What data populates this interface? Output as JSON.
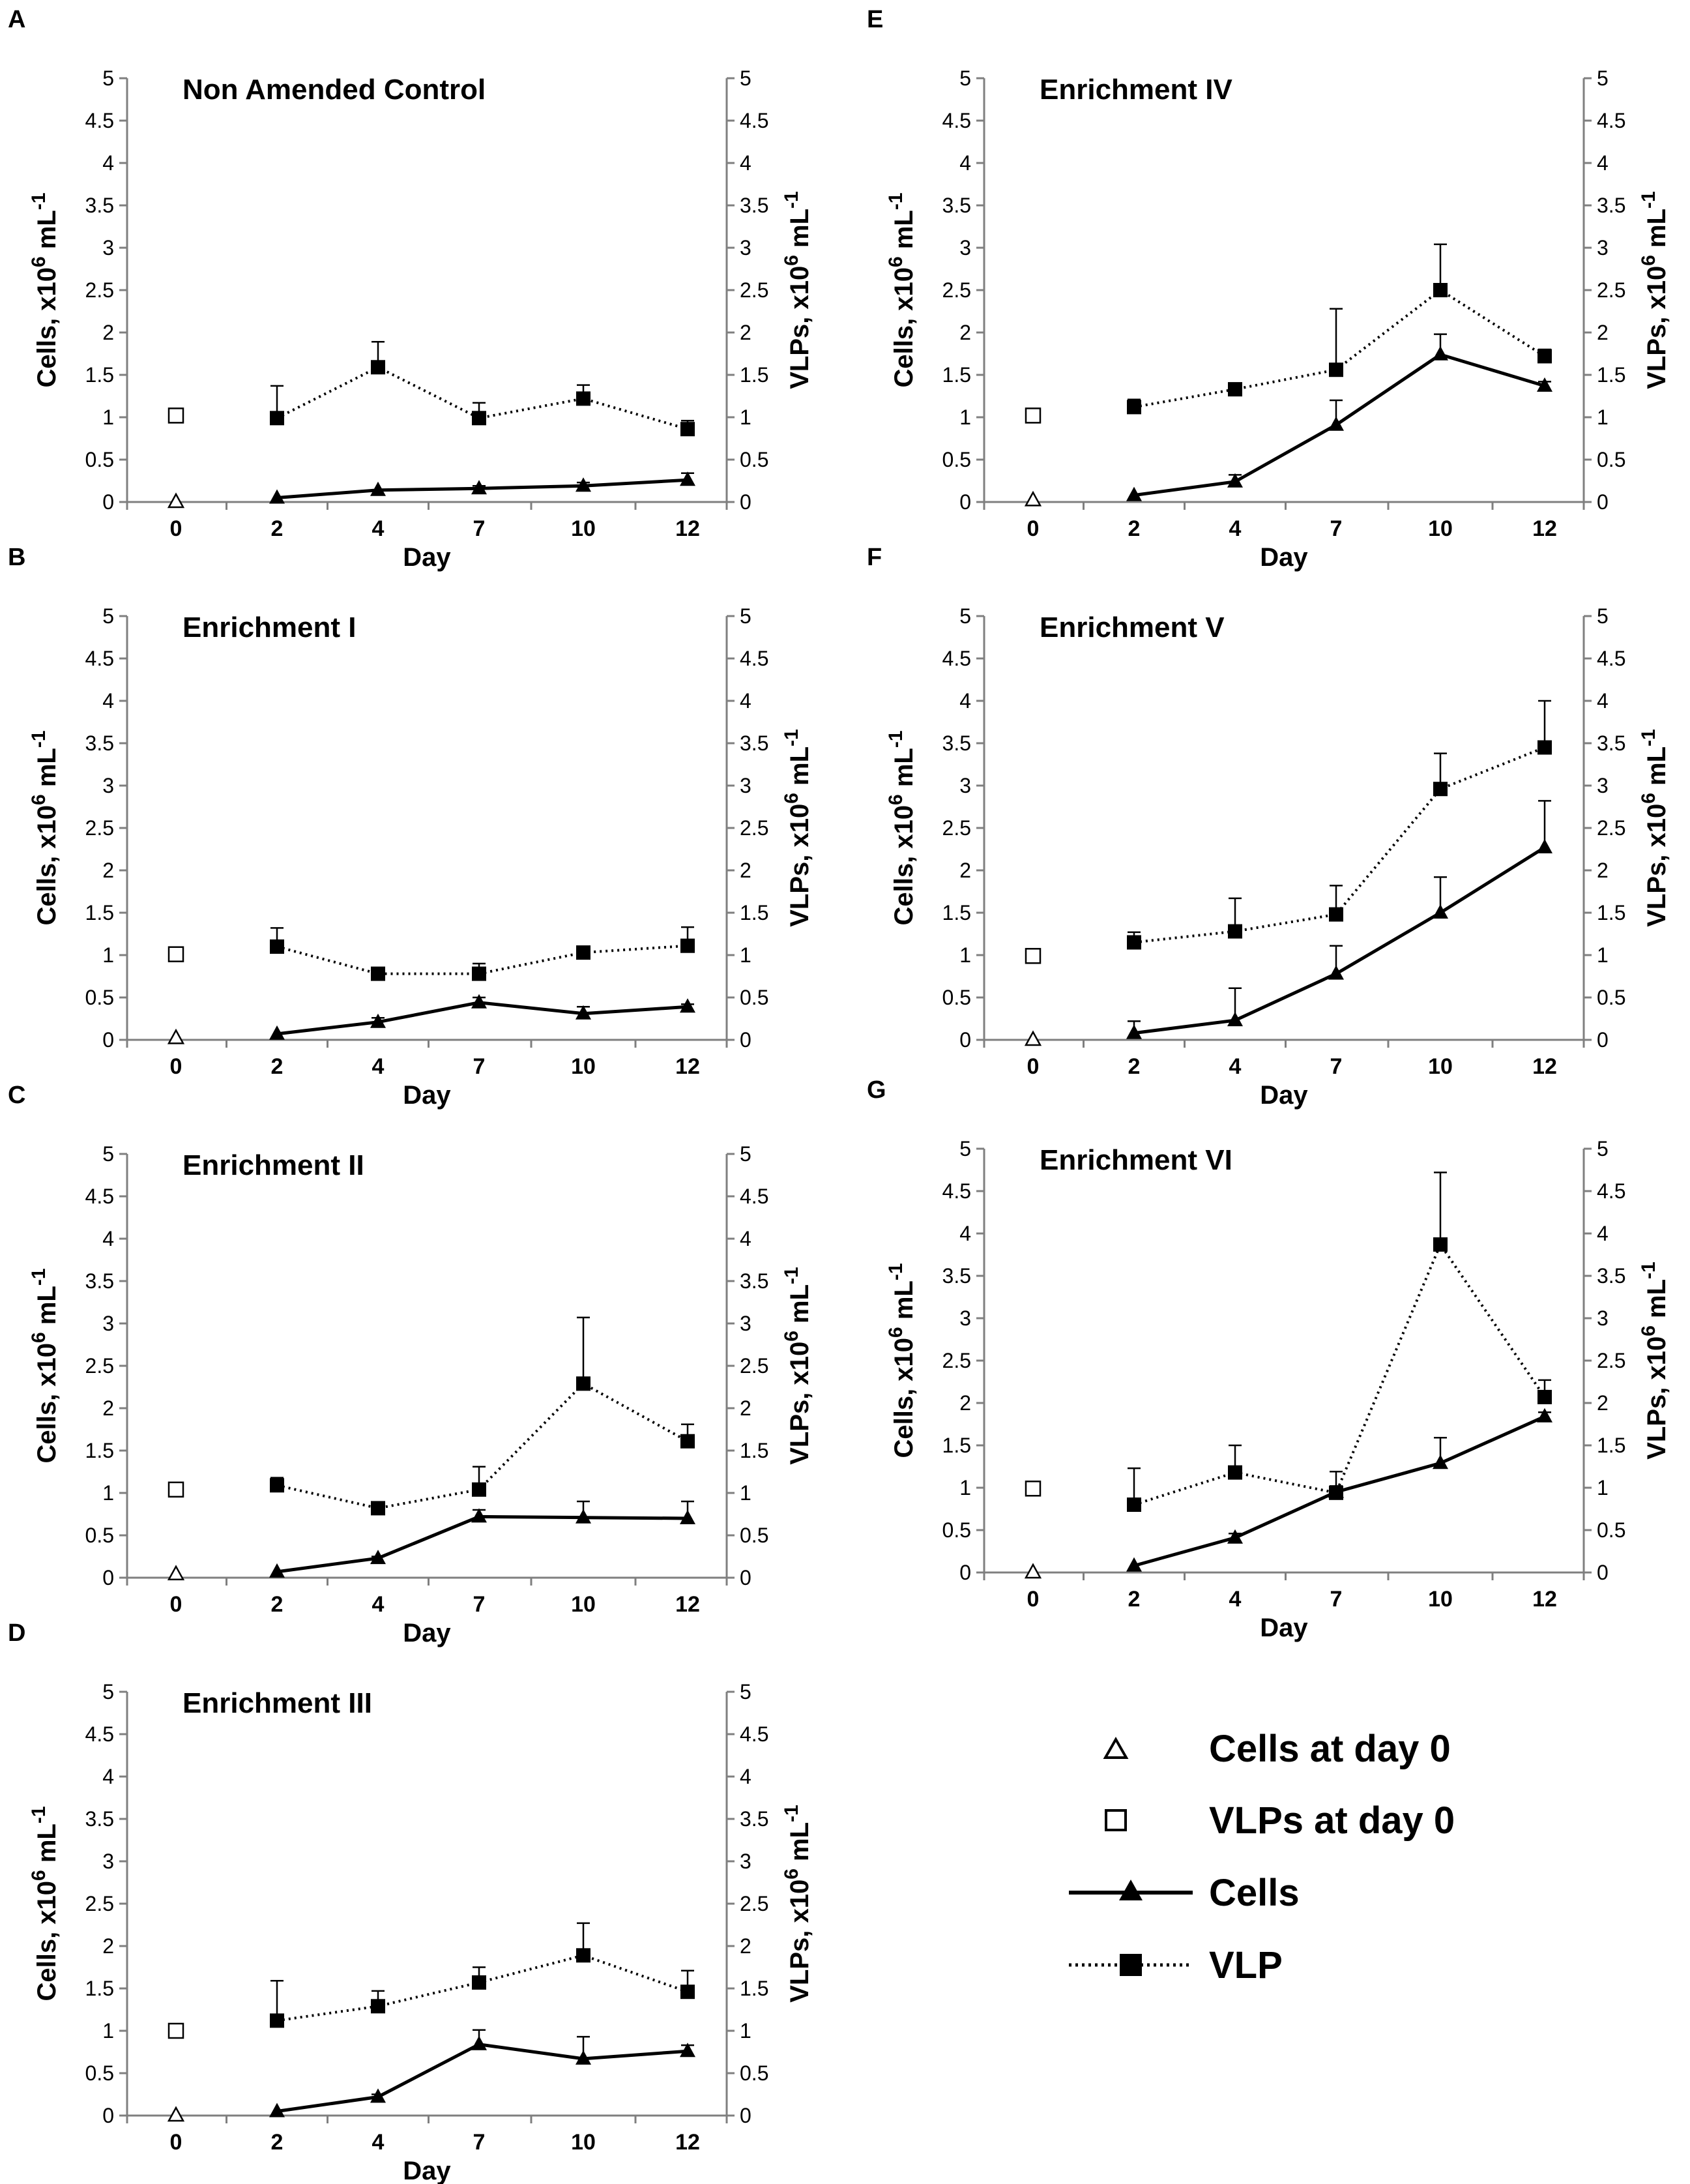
{
  "figure": {
    "panels_order": [
      "A",
      "B",
      "C",
      "D",
      "E",
      "F",
      "G"
    ],
    "legend": {
      "items": [
        {
          "label": "Cells at day 0",
          "marker": "open-triangle",
          "line": "none"
        },
        {
          "label": "VLPs at day 0",
          "marker": "open-square",
          "line": "none"
        },
        {
          "label": "Cells",
          "marker": "filled-triangle",
          "line": "solid"
        },
        {
          "label": "VLP",
          "marker": "filled-square",
          "line": "dotted"
        }
      ]
    }
  },
  "chart_data": [
    {
      "panel": "A",
      "type": "line",
      "title": "Non Amended Control",
      "xlabel": "Day",
      "ylabel_left": "Cells, x10^6 mL^-1",
      "ylabel_right": "VLPs, x10^6 mL^-1",
      "categories": [
        "0",
        "2",
        "4",
        "7",
        "10",
        "12"
      ],
      "ylim": [
        0,
        5
      ],
      "yticks": [
        "0",
        "0.5",
        "1",
        "1.5",
        "2",
        "2.5",
        "3",
        "3.5",
        "4",
        "4.5",
        "5"
      ],
      "day0": {
        "cells": 0.0,
        "vlps": 1.02
      },
      "series": [
        {
          "name": "Cells",
          "x": [
            "2",
            "4",
            "7",
            "10",
            "12"
          ],
          "values": [
            0.05,
            0.14,
            0.16,
            0.19,
            0.26
          ],
          "errors": [
            0,
            0,
            0.03,
            0.04,
            0.08
          ]
        },
        {
          "name": "VLP",
          "x": [
            "2",
            "4",
            "7",
            "10",
            "12"
          ],
          "values": [
            0.99,
            1.59,
            0.99,
            1.22,
            0.86
          ],
          "errors": [
            0.38,
            0.3,
            0.18,
            0.16,
            0.1
          ]
        }
      ]
    },
    {
      "panel": "B",
      "type": "line",
      "title": "Enrichment I",
      "xlabel": "Day",
      "ylabel_left": "Cells, x10^6 mL^-1",
      "ylabel_right": "VLPs, x10^6 mL^-1",
      "categories": [
        "0",
        "2",
        "4",
        "7",
        "10",
        "12"
      ],
      "ylim": [
        0,
        5
      ],
      "yticks": [
        "0",
        "0.5",
        "1",
        "1.5",
        "2",
        "2.5",
        "3",
        "3.5",
        "4",
        "4.5",
        "5"
      ],
      "day0": {
        "cells": 0.02,
        "vlps": 1.01
      },
      "series": [
        {
          "name": "Cells",
          "x": [
            "2",
            "4",
            "7",
            "10",
            "12"
          ],
          "values": [
            0.07,
            0.21,
            0.44,
            0.31,
            0.39
          ],
          "errors": [
            0,
            0.05,
            0.06,
            0.08,
            0.03
          ]
        },
        {
          "name": "VLP",
          "x": [
            "2",
            "4",
            "7",
            "10",
            "12"
          ],
          "values": [
            1.1,
            0.78,
            0.78,
            1.03,
            1.11
          ],
          "errors": [
            0.22,
            0.06,
            0.12,
            0.07,
            0.22
          ]
        }
      ]
    },
    {
      "panel": "C",
      "type": "line",
      "title": "Enrichment II",
      "xlabel": "Day",
      "ylabel_left": "Cells, x10^6 mL^-1",
      "ylabel_right": "VLPs, x10^6 mL^-1",
      "categories": [
        "0",
        "2",
        "4",
        "7",
        "10",
        "12"
      ],
      "ylim": [
        0,
        5
      ],
      "yticks": [
        "0",
        "0.5",
        "1",
        "1.5",
        "2",
        "2.5",
        "3",
        "3.5",
        "4",
        "4.5",
        "5"
      ],
      "day0": {
        "cells": 0.04,
        "vlps": 1.04
      },
      "series": [
        {
          "name": "Cells",
          "x": [
            "2",
            "4",
            "7",
            "10",
            "12"
          ],
          "values": [
            0.07,
            0.23,
            0.72,
            0.71,
            0.7
          ],
          "errors": [
            0,
            0.02,
            0.08,
            0.19,
            0.2
          ]
        },
        {
          "name": "VLP",
          "x": [
            "2",
            "4",
            "7",
            "10",
            "12"
          ],
          "values": [
            1.09,
            0.82,
            1.04,
            2.29,
            1.61
          ],
          "errors": [
            0.09,
            0.03,
            0.27,
            0.78,
            0.2
          ]
        }
      ]
    },
    {
      "panel": "D",
      "type": "line",
      "title": "Enrichment III",
      "xlabel": "Day",
      "ylabel_left": "Cells, x10^6 mL^-1",
      "ylabel_right": "VLPs, x10^6 mL^-1",
      "categories": [
        "0",
        "2",
        "4",
        "7",
        "10",
        "12"
      ],
      "ylim": [
        0,
        5
      ],
      "yticks": [
        "0",
        "0.5",
        "1",
        "1.5",
        "2",
        "2.5",
        "3",
        "3.5",
        "4",
        "4.5",
        "5"
      ],
      "day0": {
        "cells": 0.0,
        "vlps": 1.0
      },
      "series": [
        {
          "name": "Cells",
          "x": [
            "2",
            "4",
            "7",
            "10",
            "12"
          ],
          "values": [
            0.05,
            0.22,
            0.84,
            0.67,
            0.76
          ],
          "errors": [
            0,
            0.03,
            0.17,
            0.26,
            0.07
          ]
        },
        {
          "name": "VLP",
          "x": [
            "2",
            "4",
            "7",
            "10",
            "12"
          ],
          "values": [
            1.12,
            1.29,
            1.57,
            1.89,
            1.46
          ],
          "errors": [
            0.47,
            0.18,
            0.18,
            0.38,
            0.25
          ]
        }
      ]
    },
    {
      "panel": "E",
      "type": "line",
      "title": "Enrichment IV",
      "xlabel": "Day",
      "ylabel_left": "Cells, x10^6 mL^-1",
      "ylabel_right": "VLPs, x10^6 mL^-1",
      "categories": [
        "0",
        "2",
        "4",
        "7",
        "10",
        "12"
      ],
      "ylim": [
        0,
        5
      ],
      "yticks": [
        "0",
        "0.5",
        "1",
        "1.5",
        "2",
        "2.5",
        "3",
        "3.5",
        "4",
        "4.5",
        "5"
      ],
      "day0": {
        "cells": 0.02,
        "vlps": 1.02
      },
      "series": [
        {
          "name": "Cells",
          "x": [
            "2",
            "4",
            "7",
            "10",
            "12"
          ],
          "values": [
            0.08,
            0.24,
            0.91,
            1.74,
            1.37
          ],
          "errors": [
            0,
            0.08,
            0.29,
            0.24,
            0.05
          ]
        },
        {
          "name": "VLP",
          "x": [
            "2",
            "4",
            "7",
            "10",
            "12"
          ],
          "values": [
            1.12,
            1.33,
            1.56,
            2.5,
            1.72
          ],
          "errors": [
            0.09,
            0.05,
            0.72,
            0.54,
            0.08
          ]
        }
      ]
    },
    {
      "panel": "F",
      "type": "line",
      "title": "Enrichment V",
      "xlabel": "Day",
      "ylabel_left": "Cells, x10^6 mL^-1",
      "ylabel_right": "VLPs, x10^6 mL^-1",
      "categories": [
        "0",
        "2",
        "4",
        "7",
        "10",
        "12"
      ],
      "ylim": [
        0,
        5
      ],
      "yticks": [
        "0",
        "0.5",
        "1",
        "1.5",
        "2",
        "2.5",
        "3",
        "3.5",
        "4",
        "4.5",
        "5"
      ],
      "day0": {
        "cells": 0.0,
        "vlps": 0.99
      },
      "series": [
        {
          "name": "Cells",
          "x": [
            "2",
            "4",
            "7",
            "10",
            "12"
          ],
          "values": [
            0.08,
            0.23,
            0.78,
            1.5,
            2.27
          ],
          "errors": [
            0.14,
            0.38,
            0.33,
            0.42,
            0.55
          ]
        },
        {
          "name": "VLP",
          "x": [
            "2",
            "4",
            "7",
            "10",
            "12"
          ],
          "values": [
            1.15,
            1.28,
            1.48,
            2.96,
            3.45
          ],
          "errors": [
            0.12,
            0.39,
            0.34,
            0.42,
            0.55
          ]
        }
      ]
    },
    {
      "panel": "G",
      "type": "line",
      "title": "Enrichment VI",
      "xlabel": "Day",
      "ylabel_left": "Cells, x10^6 mL^-1",
      "ylabel_right": "VLPs, x10^6 mL^-1",
      "categories": [
        "0",
        "2",
        "4",
        "7",
        "10",
        "12"
      ],
      "ylim": [
        0,
        5
      ],
      "yticks": [
        "0",
        "0.5",
        "1",
        "1.5",
        "2",
        "2.5",
        "3",
        "3.5",
        "4",
        "4.5",
        "5"
      ],
      "day0": {
        "cells": 0.0,
        "vlps": 0.99
      },
      "series": [
        {
          "name": "Cells",
          "x": [
            "2",
            "4",
            "7",
            "10",
            "12"
          ],
          "values": [
            0.08,
            0.41,
            0.95,
            1.29,
            1.84
          ],
          "errors": [
            0,
            0.05,
            0.07,
            0.3,
            0.05
          ]
        },
        {
          "name": "VLP",
          "x": [
            "2",
            "4",
            "7",
            "10",
            "12"
          ],
          "values": [
            0.8,
            1.18,
            0.94,
            3.87,
            2.07
          ],
          "errors": [
            0.43,
            0.32,
            0.25,
            0.85,
            0.2
          ]
        }
      ]
    }
  ]
}
